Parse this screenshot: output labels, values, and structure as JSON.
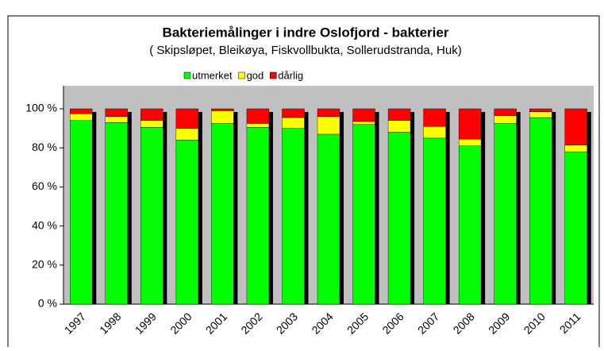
{
  "chart_data": {
    "type": "stacked_bar",
    "title": "Bakteriemålinger i indre Oslofjord - bakterier",
    "subtitle": "( Skipsløpet, Bleikøya, Fiskvollbukta, Sollerudstranda, Huk)",
    "categories": [
      "1997",
      "1998",
      "1999",
      "2000",
      "2001",
      "2002",
      "2003",
      "2004",
      "2005",
      "2006",
      "2007",
      "2008",
      "2009",
      "2010",
      "2011"
    ],
    "series": [
      {
        "name": "utmerket",
        "color": "#00ff00",
        "values": [
          94,
          93,
          90.5,
          84,
          92.5,
          90.5,
          90,
          87,
          92,
          88,
          85,
          81,
          92.5,
          95.5,
          78
        ]
      },
      {
        "name": "god",
        "color": "#ffff00",
        "values": [
          3.5,
          3,
          3.5,
          6,
          6.5,
          2,
          5.5,
          9,
          1.5,
          6,
          6,
          3.5,
          4,
          3,
          3.5
        ]
      },
      {
        "name": "dårlig",
        "color": "#ff0000",
        "values": [
          2.5,
          4,
          6,
          10,
          1,
          7.5,
          4.5,
          4,
          6.5,
          6,
          9,
          15.5,
          3.5,
          1.5,
          18.5
        ]
      }
    ],
    "ylim": [
      0,
      100
    ],
    "yticks": [
      {
        "value": 0,
        "label": "0 %"
      },
      {
        "value": 20,
        "label": "20 %"
      },
      {
        "value": 40,
        "label": "40 %"
      },
      {
        "value": 60,
        "label": "60 %"
      },
      {
        "value": 80,
        "label": "80 %"
      },
      {
        "value": 100,
        "label": "100 %"
      }
    ],
    "legend": "top"
  }
}
